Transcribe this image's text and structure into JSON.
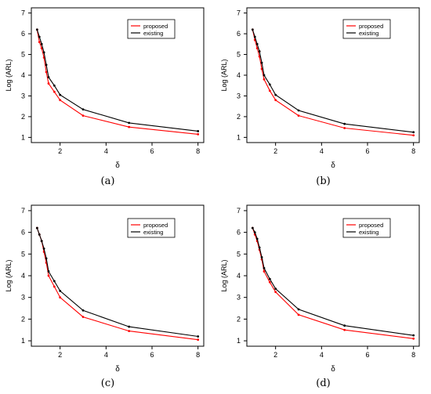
{
  "chart_data": [
    {
      "type": "line",
      "caption": "(a)",
      "ylabel": "Log (ARL)",
      "xlabel": "δ",
      "xlim": [
        0.75,
        8.25
      ],
      "ylim": [
        0.75,
        7.25
      ],
      "xticks": [
        2,
        4,
        6,
        8
      ],
      "yticks": [
        1,
        2,
        3,
        4,
        5,
        6,
        7
      ],
      "grid": false,
      "legend": "top-right",
      "series": [
        {
          "name": "proposed",
          "color": "#ff0000",
          "x": [
            1.0,
            1.1,
            1.2,
            1.3,
            1.4,
            1.5,
            1.75,
            2.0,
            3.0,
            5.0,
            8.0
          ],
          "y": [
            6.2,
            5.6,
            5.3,
            4.85,
            4.15,
            3.6,
            3.2,
            2.8,
            2.05,
            1.5,
            1.15
          ]
        },
        {
          "name": "existing",
          "color": "#000000",
          "x": [
            1.0,
            1.1,
            1.2,
            1.3,
            1.4,
            1.5,
            1.75,
            2.0,
            3.0,
            5.0,
            8.0
          ],
          "y": [
            6.2,
            5.85,
            5.5,
            5.1,
            4.5,
            3.9,
            3.5,
            3.05,
            2.35,
            1.7,
            1.3
          ]
        }
      ]
    },
    {
      "type": "line",
      "caption": "(b)",
      "ylabel": "Log (ARL)",
      "xlabel": "δ",
      "xlim": [
        0.75,
        8.25
      ],
      "ylim": [
        0.75,
        7.25
      ],
      "xticks": [
        2,
        4,
        6,
        8
      ],
      "yticks": [
        1,
        2,
        3,
        4,
        5,
        6,
        7
      ],
      "grid": false,
      "legend": "top-right",
      "series": [
        {
          "name": "proposed",
          "color": "#ff0000",
          "x": [
            1.0,
            1.1,
            1.2,
            1.3,
            1.4,
            1.5,
            1.75,
            2.0,
            3.0,
            5.0,
            8.0
          ],
          "y": [
            6.2,
            5.7,
            5.3,
            4.9,
            4.3,
            3.8,
            3.25,
            2.8,
            2.05,
            1.45,
            1.1
          ]
        },
        {
          "name": "existing",
          "color": "#000000",
          "x": [
            1.0,
            1.1,
            1.2,
            1.3,
            1.4,
            1.5,
            1.75,
            2.0,
            3.0,
            5.0,
            8.0
          ],
          "y": [
            6.2,
            5.85,
            5.5,
            5.15,
            4.6,
            4.0,
            3.55,
            3.05,
            2.3,
            1.65,
            1.25
          ]
        }
      ]
    },
    {
      "type": "line",
      "caption": "(c)",
      "ylabel": "Log (ARL)",
      "xlabel": "δ",
      "xlim": [
        0.75,
        8.25
      ],
      "ylim": [
        0.75,
        7.25
      ],
      "xticks": [
        2,
        4,
        6,
        8
      ],
      "yticks": [
        1,
        2,
        3,
        4,
        5,
        6,
        7
      ],
      "grid": false,
      "legend": "top-right",
      "series": [
        {
          "name": "proposed",
          "color": "#ff0000",
          "x": [
            1.0,
            1.1,
            1.2,
            1.3,
            1.4,
            1.5,
            1.75,
            2.0,
            3.0,
            5.0,
            8.0
          ],
          "y": [
            6.2,
            5.9,
            5.6,
            5.1,
            4.6,
            4.0,
            3.5,
            3.0,
            2.1,
            1.45,
            1.05
          ]
        },
        {
          "name": "existing",
          "color": "#000000",
          "x": [
            1.0,
            1.1,
            1.2,
            1.3,
            1.4,
            1.5,
            1.75,
            2.0,
            3.0,
            5.0,
            8.0
          ],
          "y": [
            6.2,
            5.9,
            5.6,
            5.25,
            4.8,
            4.2,
            3.75,
            3.3,
            2.4,
            1.65,
            1.2
          ]
        }
      ]
    },
    {
      "type": "line",
      "caption": "(d)",
      "ylabel": "Log (ARL)",
      "xlabel": "δ",
      "xlim": [
        0.75,
        8.25
      ],
      "ylim": [
        0.75,
        7.25
      ],
      "xticks": [
        2,
        4,
        6,
        8
      ],
      "yticks": [
        1,
        2,
        3,
        4,
        5,
        6,
        7
      ],
      "grid": false,
      "legend": "top-right",
      "series": [
        {
          "name": "proposed",
          "color": "#ff0000",
          "x": [
            1.0,
            1.1,
            1.2,
            1.3,
            1.4,
            1.5,
            1.75,
            2.0,
            3.0,
            5.0,
            8.0
          ],
          "y": [
            6.2,
            5.9,
            5.6,
            5.2,
            4.75,
            4.2,
            3.7,
            3.25,
            2.2,
            1.5,
            1.1
          ]
        },
        {
          "name": "existing",
          "color": "#000000",
          "x": [
            1.0,
            1.1,
            1.2,
            1.3,
            1.4,
            1.5,
            1.75,
            2.0,
            3.0,
            5.0,
            8.0
          ],
          "y": [
            6.2,
            6.0,
            5.7,
            5.3,
            4.85,
            4.35,
            3.85,
            3.4,
            2.45,
            1.7,
            1.25
          ]
        }
      ]
    }
  ]
}
